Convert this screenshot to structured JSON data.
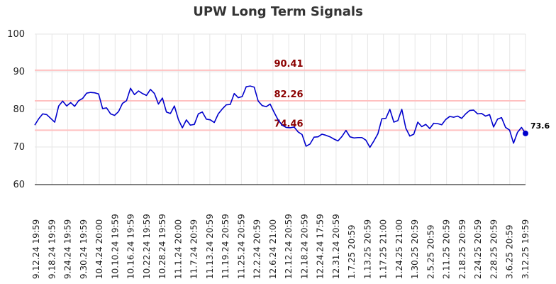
{
  "chart_data": {
    "type": "line",
    "title": "UPW Long Term Signals",
    "xlabel": "",
    "ylabel": "",
    "ylim": [
      60,
      100
    ],
    "yticks": [
      "60",
      "70",
      "80",
      "90",
      "100"
    ],
    "grid": true,
    "xtick_labels": [
      "9.12.24 19:59",
      "9.18.24 19:59",
      "9.24.24 19:59",
      "9.30.24 19:59",
      "10.4.24 20:00",
      "10.10.24 19:59",
      "10.16.24 19:59",
      "10.22.24 19:59",
      "10.28.24 19:59",
      "11.1.24 20:00",
      "11.7.24 20:59",
      "11.13.24 20:59",
      "11.19.24 20:59",
      "11.25.24 20:59",
      "12.2.24 20:59",
      "12.6.24 21:00",
      "12.12.24 20:59",
      "12.18.24 20:59",
      "12.24.24 17:59",
      "12.31.24 20:59",
      "1.7.25 20:59",
      "1.13.25 20:59",
      "1.17.25 21:00",
      "1.24.25 21:00",
      "1.30.25 20:59",
      "2.5.25 20:59",
      "2.11.25 20:59",
      "2.18.25 20:59",
      "2.24.25 20:59",
      "2.28.25 20:59",
      "3.6.25 20:59",
      "3.12.25 19:59"
    ],
    "series": [
      {
        "color": "#0000cc",
        "values": [
          75.8,
          77.5,
          78.8,
          78.6,
          77.6,
          76.6,
          80.9,
          82.2,
          80.9,
          81.8,
          80.8,
          82.3,
          82.9,
          84.3,
          84.5,
          84.4,
          84.1,
          80.2,
          80.4,
          78.8,
          78.4,
          79.4,
          81.6,
          82.3,
          85.6,
          83.9,
          84.9,
          84.2,
          83.7,
          85.3,
          84.2,
          81.4,
          83.0,
          79.3,
          78.9,
          80.9,
          77.3,
          75.1,
          77.2,
          75.8,
          76.0,
          78.8,
          79.3,
          77.4,
          77.2,
          76.5,
          78.8,
          80.1,
          81.2,
          81.3,
          84.2,
          83.1,
          83.4,
          86.0,
          86.2,
          85.9,
          82.2,
          81.0,
          80.7,
          81.4,
          79.2,
          77.2,
          75.8,
          75.2,
          75.1,
          75.3,
          74.0,
          73.3,
          70.2,
          70.8,
          72.6,
          72.7,
          73.4,
          73.1,
          72.7,
          72.1,
          71.6,
          72.8,
          74.4,
          72.7,
          72.4,
          72.5,
          72.5,
          71.8,
          69.9,
          71.6,
          73.5,
          77.5,
          77.6,
          80.0,
          76.6,
          77.0,
          80.0,
          75.0,
          72.9,
          73.4,
          76.6,
          75.4,
          76.0,
          74.9,
          76.3,
          76.2,
          75.9,
          77.3,
          78.1,
          77.9,
          78.2,
          77.6,
          78.8,
          79.7,
          79.8,
          78.8,
          78.9,
          78.2,
          78.6,
          75.3,
          77.4,
          77.8,
          75.2,
          74.5,
          71.0,
          73.9,
          75.2,
          73.6
        ]
      }
    ],
    "horizontal_lines": [
      {
        "value": 90.41,
        "label": "90.41",
        "line_color": "#ffc0c0",
        "label_color": "#8b0000"
      },
      {
        "value": 82.26,
        "label": "82.26",
        "line_color": "#ffc0c0",
        "label_color": "#8b0000"
      },
      {
        "value": 74.46,
        "label": "74.46",
        "line_color": "#ffc0c0",
        "label_color": "#8b0000"
      }
    ],
    "last_value_label": "73.6"
  }
}
